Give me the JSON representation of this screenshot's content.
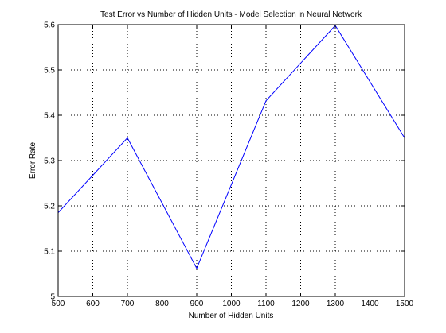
{
  "chart_data": {
    "type": "line",
    "title": "Test Error vs Number of Hidden Units - Model Selection in Neural Network",
    "xlabel": "Number of Hidden Units",
    "ylabel": "Error Rate",
    "xlim": [
      500,
      1500
    ],
    "ylim": [
      5,
      5.6
    ],
    "xticks": [
      500,
      600,
      700,
      800,
      900,
      1000,
      1100,
      1200,
      1300,
      1400,
      1500
    ],
    "yticks": [
      5,
      5.1,
      5.2,
      5.3,
      5.4,
      5.5,
      5.6
    ],
    "xtick_labels": [
      "500",
      "600",
      "700",
      "800",
      "900",
      "1000",
      "1100",
      "1200",
      "1300",
      "1400",
      "1500"
    ],
    "ytick_labels": [
      "5",
      "5.1",
      "5.2",
      "5.3",
      "5.4",
      "5.5",
      "5.6"
    ],
    "grid": "dotted",
    "x": [
      500,
      700,
      900,
      1100,
      1300,
      1500
    ],
    "series": [
      {
        "values": [
          5.185,
          5.35,
          5.062,
          5.432,
          5.598,
          5.35
        ],
        "color": "#0000ff"
      }
    ]
  }
}
